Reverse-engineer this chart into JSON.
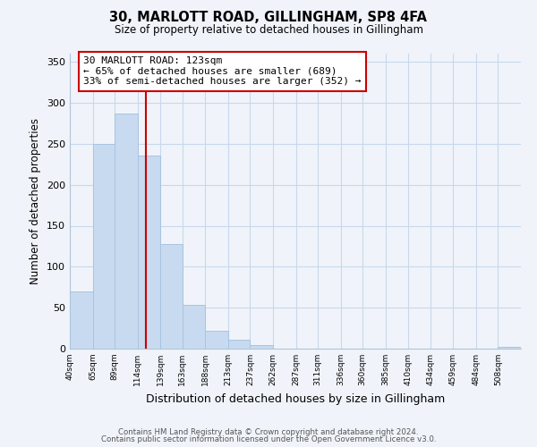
{
  "title": "30, MARLOTT ROAD, GILLINGHAM, SP8 4FA",
  "subtitle": "Size of property relative to detached houses in Gillingham",
  "xlabel": "Distribution of detached houses by size in Gillingham",
  "ylabel": "Number of detached properties",
  "bar_color": "#c8daf0",
  "bar_edge_color": "#a8c4e0",
  "vline_x": 123,
  "vline_color": "#cc0000",
  "annotation_line0": "30 MARLOTT ROAD: 123sqm",
  "annotation_line1": "← 65% of detached houses are smaller (689)",
  "annotation_line2": "33% of semi-detached houses are larger (352) →",
  "annotation_box_color": "#ffffff",
  "annotation_box_edge": "#cc0000",
  "bin_edges": [
    40,
    65,
    89,
    114,
    139,
    163,
    188,
    213,
    237,
    262,
    287,
    311,
    336,
    360,
    385,
    410,
    434,
    459,
    484,
    508,
    533
  ],
  "bar_heights": [
    70,
    250,
    287,
    236,
    128,
    54,
    22,
    11,
    4,
    0,
    0,
    0,
    0,
    0,
    0,
    0,
    0,
    0,
    0,
    2
  ],
  "ylim": [
    0,
    360
  ],
  "yticks": [
    0,
    50,
    100,
    150,
    200,
    250,
    300,
    350
  ],
  "grid_color": "#c8d8ec",
  "footer1": "Contains HM Land Registry data © Crown copyright and database right 2024.",
  "footer2": "Contains public sector information licensed under the Open Government Licence v3.0.",
  "background_color": "#f0f4fa"
}
